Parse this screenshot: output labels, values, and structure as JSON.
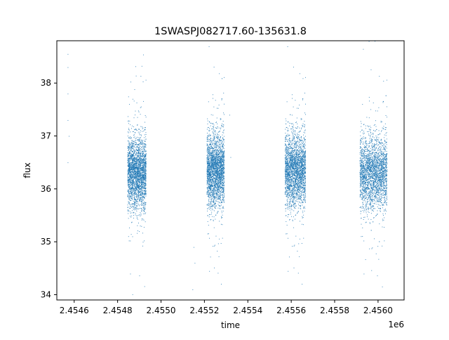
{
  "chart_data": {
    "type": "scatter",
    "title": "1SWASPJ082717.60-135631.8",
    "xlabel": "time",
    "ylabel": "flux",
    "x_offset_label": "1e6",
    "xlim": [
      2.45452,
      2.45612
    ],
    "ylim": [
      33.9,
      38.8
    ],
    "x_ticks": [
      2.4546,
      2.4548,
      2.455,
      2.4552,
      2.4554,
      2.4556,
      2.4558,
      2.456
    ],
    "x_tick_labels": [
      "2.4546",
      "2.4548",
      "2.4550",
      "2.4552",
      "2.4554",
      "2.4556",
      "2.4558",
      "2.4560"
    ],
    "y_ticks": [
      34,
      35,
      36,
      37,
      38
    ],
    "y_tick_labels": [
      "34",
      "35",
      "36",
      "37",
      "38"
    ],
    "point_color": "#1f77b4",
    "grid": false,
    "series": [
      {
        "observing_seasons": [
          {
            "x_range": [
              2.454845,
              2.45493
            ],
            "center": 36.3,
            "spread": 0.33
          },
          {
            "x_range": [
              2.45521,
              2.45529
            ],
            "center": 36.35,
            "spread": 0.33
          },
          {
            "x_range": [
              2.45557,
              2.455665
            ],
            "center": 36.35,
            "spread": 0.33
          },
          {
            "x_range": [
              2.455915,
              2.45604
            ],
            "center": 36.3,
            "spread": 0.33
          }
        ],
        "isolated_points": [
          [
            2.45457,
            38.55
          ],
          [
            2.45457,
            38.3
          ],
          [
            2.45457,
            37.8
          ],
          [
            2.454575,
            37.0
          ],
          [
            2.45457,
            36.5
          ],
          [
            2.45457,
            37.3
          ],
          [
            2.455145,
            34.1
          ],
          [
            2.45515,
            34.9
          ],
          [
            2.455155,
            34.6
          ],
          [
            2.455315,
            37.4
          ],
          [
            2.45532,
            36.6
          ]
        ]
      }
    ]
  }
}
